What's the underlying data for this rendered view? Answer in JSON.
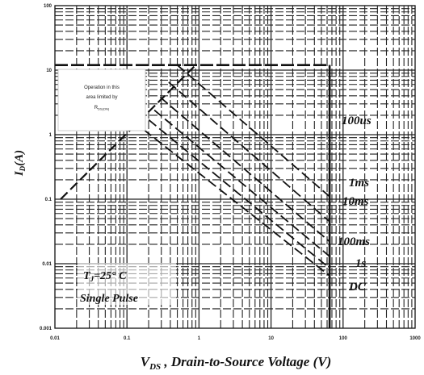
{
  "chart_data": {
    "type": "line",
    "title": "",
    "xlabel": "V_DS , Drain-to-Source Voltage (V)",
    "xlabel_main": "V",
    "xlabel_sub": "DS",
    "xlabel_rest": " , Drain-to-Source Voltage (V)",
    "ylabel": "I_D(A)",
    "ylabel_main": "I",
    "ylabel_sub": "D",
    "ylabel_rest": "(A)",
    "x_scale": "log",
    "y_scale": "log",
    "xlim": [
      0.01,
      1000
    ],
    "ylim": [
      0.001,
      100
    ],
    "grid": true,
    "x_ticks": [
      {
        "value": 0.01,
        "label": "0.01"
      },
      {
        "value": 0.1,
        "label": "0.1"
      },
      {
        "value": 1,
        "label": "1"
      },
      {
        "value": 10,
        "label": "10"
      },
      {
        "value": 100,
        "label": "100"
      },
      {
        "value": 1000,
        "label": "1000"
      }
    ],
    "y_ticks": [
      {
        "value": 0.001,
        "label": "0.001"
      },
      {
        "value": 0.01,
        "label": "0.01"
      },
      {
        "value": 0.1,
        "label": "0.1"
      },
      {
        "value": 1,
        "label": "1"
      },
      {
        "value": 10,
        "label": "10"
      },
      {
        "value": 100,
        "label": "100"
      }
    ],
    "limits": {
      "max_current": 12,
      "max_voltage": 65
    },
    "series": [
      {
        "name": "100us",
        "points": [
          [
            0.5,
            12
          ],
          [
            65,
            0.11
          ]
        ]
      },
      {
        "name": "1ms",
        "points": [
          [
            0.38,
            6.5
          ],
          [
            65,
            0.045
          ]
        ]
      },
      {
        "name": "10ms",
        "points": [
          [
            0.29,
            3.8
          ],
          [
            65,
            0.022
          ]
        ]
      },
      {
        "name": "100ms",
        "points": [
          [
            0.24,
            2.4
          ],
          [
            65,
            0.013
          ]
        ]
      },
      {
        "name": "1s",
        "points": [
          [
            0.2,
            1.7
          ],
          [
            65,
            0.0085
          ]
        ]
      },
      {
        "name": "DC",
        "points": [
          [
            0.17,
            1.2
          ],
          [
            65,
            0.0065
          ]
        ]
      }
    ],
    "rds_on_line": {
      "points": [
        [
          0.012,
          0.1
        ],
        [
          0.9,
          12
        ]
      ]
    },
    "curve_labels": [
      "100us",
      "1ms",
      "10ms",
      "100ms",
      "1s",
      "DC"
    ],
    "annotation": {
      "lines": [
        "Operation in this",
        "area limited by"
      ],
      "sym": "R",
      "sub": "DS(ON)"
    },
    "conditions": {
      "t_sym": "T",
      "t_sub": "J",
      "t_rest": "=25° C",
      "pulse": "Single Pulse"
    }
  }
}
